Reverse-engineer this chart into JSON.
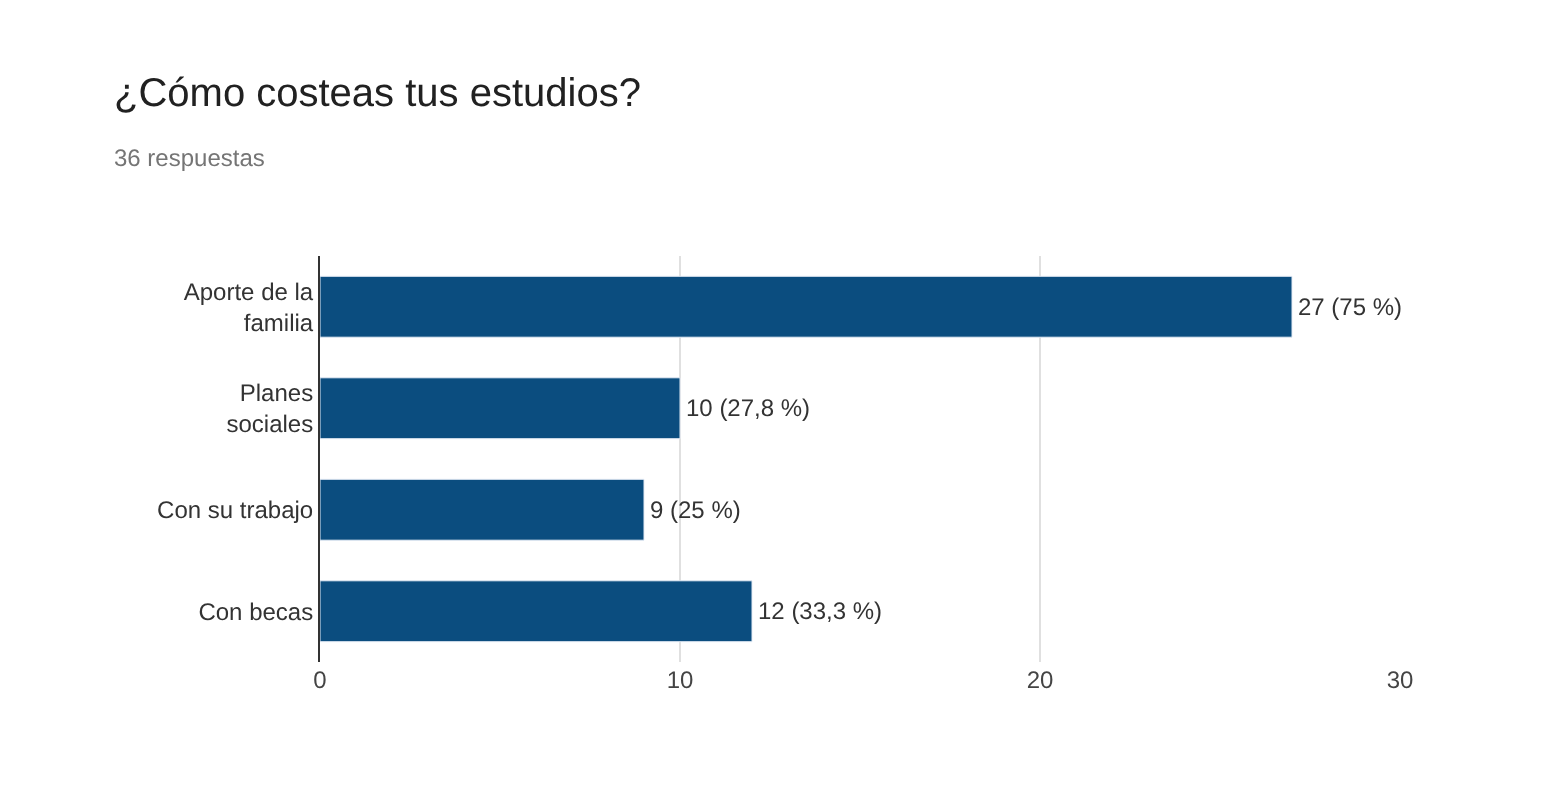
{
  "chart_data": {
    "type": "bar",
    "orientation": "horizontal",
    "title": "¿Cómo costeas tus estudios?",
    "subtitle": "36 respuestas",
    "categories": [
      "Aporte de la familia",
      "Planes sociales",
      "Con su trabajo",
      "Con becas"
    ],
    "values": [
      27,
      10,
      9,
      12
    ],
    "value_labels": [
      "27 (75 %)",
      "10 (27,8 %)",
      "9 (25 %)",
      "12 (33,3 %)"
    ],
    "color": "#0b4d7f",
    "xlim": [
      0,
      30
    ],
    "xticks": [
      0,
      10,
      20,
      30
    ],
    "grid": "x",
    "legend": false
  }
}
